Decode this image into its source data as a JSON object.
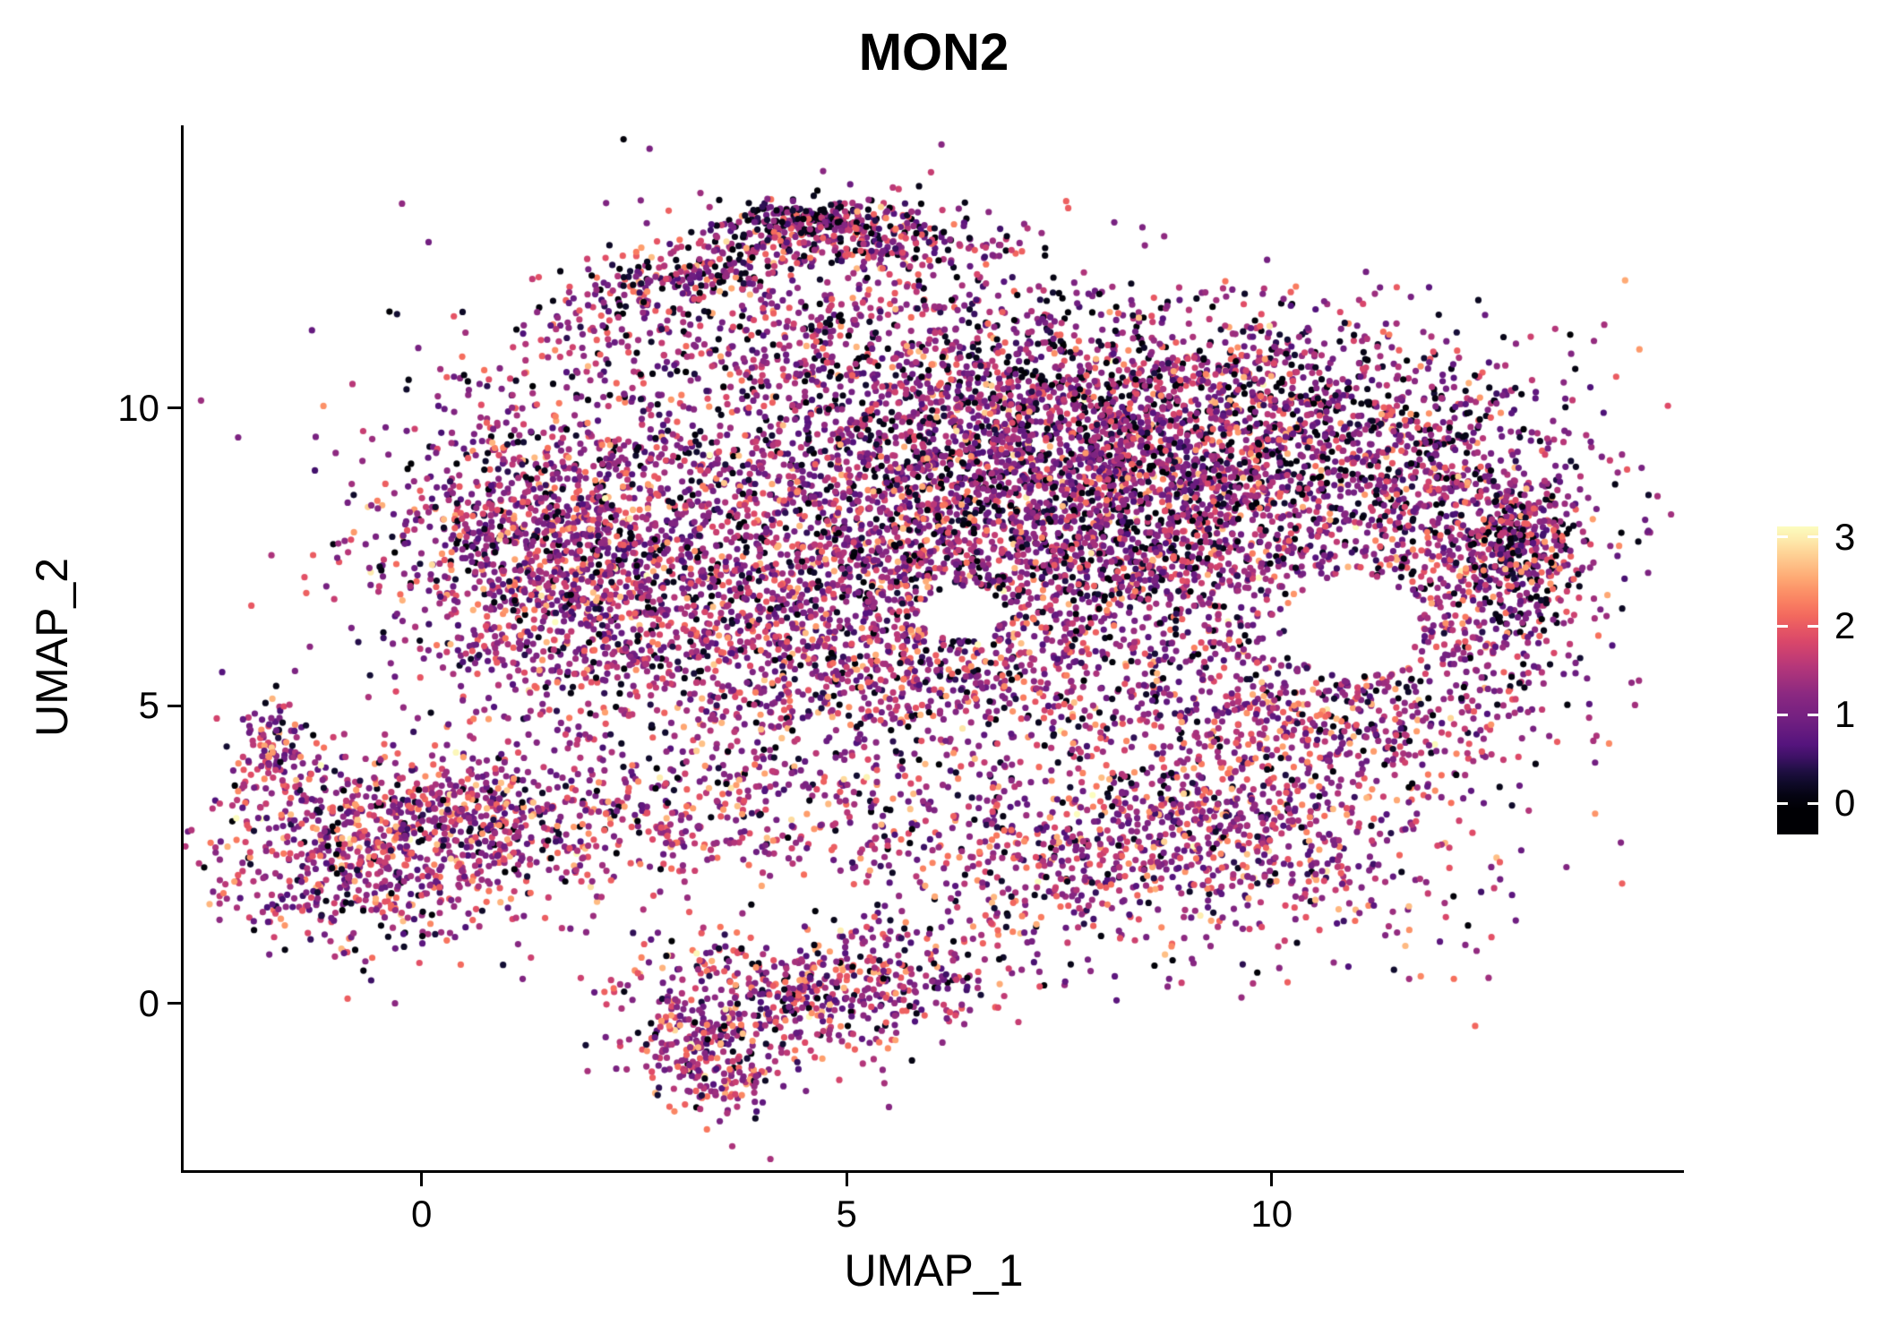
{
  "figure": {
    "background": "#FFFFFF"
  },
  "chart_data": {
    "type": "scatter",
    "title": "MON2",
    "xlabel": "UMAP_1",
    "ylabel": "UMAP_2",
    "xlim": [
      -2.8,
      14.85
    ],
    "ylim": [
      -2.8,
      14.75
    ],
    "xticks": [
      0,
      5,
      10
    ],
    "xtick_labels": [
      "0",
      "5",
      "10"
    ],
    "yticks": [
      0,
      5,
      10
    ],
    "ytick_labels": [
      "0",
      "5",
      "10"
    ],
    "grid": false,
    "legend_position": "right",
    "point_radius_px": 3.6,
    "seed": 42,
    "colorbar": {
      "tick_values": [
        0,
        1,
        2,
        3
      ],
      "tick_labels": [
        "0",
        "1",
        "2",
        "3"
      ],
      "bar_min": -0.35,
      "bar_max": 3.12,
      "cmap_max": 3.1,
      "colormap": "magma",
      "colors": [
        "#000004",
        "#140E36",
        "#51127C",
        "#711F81",
        "#8C2981",
        "#B73779",
        "#DE4968",
        "#F7705C",
        "#FE9F6D",
        "#FECF92",
        "#FCFDBF"
      ]
    },
    "voids": [
      {
        "cx": 10.95,
        "cy": 6.35,
        "rx": 0.8,
        "ry": 0.85
      },
      {
        "cx": 6.35,
        "cy": 6.55,
        "rx": 0.5,
        "ry": 0.45
      }
    ],
    "clusters": [
      {
        "name": "main-core-right",
        "cx": 7.8,
        "cy": 8.4,
        "sx": 1.9,
        "sy": 1.35,
        "rot": -8,
        "n": 3000,
        "p0": 0.2,
        "phot": 0.1
      },
      {
        "name": "main-left-lobe",
        "cx": 1.6,
        "cy": 7.6,
        "sx": 1.05,
        "sy": 1.3,
        "rot": 10,
        "n": 1500,
        "p0": 0.12,
        "phot": 0.13
      },
      {
        "name": "main-mid",
        "cx": 4.6,
        "cy": 7.3,
        "sx": 1.5,
        "sy": 1.5,
        "rot": 0,
        "n": 1300,
        "p0": 0.15,
        "phot": 0.12
      },
      {
        "name": "main-top-band",
        "cx": 7.0,
        "cy": 10.3,
        "sx": 2.2,
        "sy": 0.9,
        "rot": -5,
        "n": 900,
        "p0": 0.22,
        "phot": 0.08
      },
      {
        "name": "main-top-right",
        "cx": 10.6,
        "cy": 9.6,
        "sx": 1.5,
        "sy": 1.0,
        "rot": -15,
        "n": 900,
        "p0": 0.22,
        "phot": 0.08
      },
      {
        "name": "right-edge",
        "cx": 12.4,
        "cy": 7.3,
        "sx": 0.75,
        "sy": 1.6,
        "rot": 0,
        "n": 700,
        "p0": 0.15,
        "phot": 0.12
      },
      {
        "name": "right-edge-dense",
        "cx": 12.9,
        "cy": 7.7,
        "sx": 0.35,
        "sy": 0.5,
        "rot": 0,
        "n": 250,
        "p0": 0.25,
        "phot": 0.1
      },
      {
        "name": "main-bottom-fringe",
        "cx": 6.0,
        "cy": 5.6,
        "sx": 2.6,
        "sy": 0.7,
        "rot": -3,
        "n": 700,
        "p0": 0.15,
        "phot": 0.15
      },
      {
        "name": "top-arc-left",
        "cx": 3.2,
        "cy": 12.25,
        "sx": 1.0,
        "sy": 0.3,
        "rot": 25,
        "n": 300,
        "p0": 0.25,
        "phot": 0.08
      },
      {
        "name": "top-arc-right",
        "cx": 5.3,
        "cy": 12.85,
        "sx": 1.0,
        "sy": 0.3,
        "rot": -8,
        "n": 300,
        "p0": 0.25,
        "phot": 0.08
      },
      {
        "name": "top-arc-crest",
        "cx": 4.6,
        "cy": 13.15,
        "sx": 0.5,
        "sy": 0.18,
        "rot": 0,
        "n": 150,
        "p0": 0.35,
        "phot": 0.06
      },
      {
        "name": "below-arc-scatter",
        "cx": 4.4,
        "cy": 11.2,
        "sx": 1.6,
        "sy": 0.7,
        "rot": 0,
        "n": 250,
        "p0": 0.2,
        "phot": 0.08
      },
      {
        "name": "left-cluster",
        "cx": -0.55,
        "cy": 2.6,
        "sx": 1.0,
        "sy": 0.85,
        "rot": 0,
        "n": 850,
        "p0": 0.1,
        "phot": 0.2
      },
      {
        "name": "left-cluster-tail",
        "cx": -1.75,
        "cy": 4.35,
        "sx": 0.22,
        "sy": 0.35,
        "rot": 0,
        "n": 90,
        "p0": 0.12,
        "phot": 0.15
      },
      {
        "name": "left-cluster-ext",
        "cx": 0.8,
        "cy": 3.3,
        "sx": 0.6,
        "sy": 0.4,
        "rot": 0,
        "n": 200,
        "p0": 0.1,
        "phot": 0.18
      },
      {
        "name": "mid-band",
        "cx": 3.5,
        "cy": 2.9,
        "sx": 1.8,
        "sy": 0.5,
        "rot": 3,
        "n": 380,
        "p0": 0.1,
        "phot": 0.22
      },
      {
        "name": "upper-band",
        "cx": 4.0,
        "cy": 3.9,
        "sx": 1.6,
        "sy": 0.35,
        "rot": 0,
        "n": 150,
        "p0": 0.12,
        "phot": 0.15
      },
      {
        "name": "bottom-cluster",
        "cx": 4.3,
        "cy": 0.1,
        "sx": 1.05,
        "sy": 0.6,
        "rot": 5,
        "n": 520,
        "p0": 0.1,
        "phot": 0.2
      },
      {
        "name": "bottom-tail",
        "cx": 3.35,
        "cy": -0.9,
        "sx": 0.4,
        "sy": 0.55,
        "rot": 20,
        "n": 200,
        "p0": 0.12,
        "phot": 0.18
      },
      {
        "name": "bottom-ext",
        "cx": 5.9,
        "cy": 0.5,
        "sx": 0.8,
        "sy": 0.45,
        "rot": 10,
        "n": 130,
        "p0": 0.12,
        "phot": 0.18
      },
      {
        "name": "lower-right-lobe",
        "cx": 9.4,
        "cy": 3.1,
        "sx": 1.5,
        "sy": 1.1,
        "rot": -10,
        "n": 950,
        "p0": 0.1,
        "phot": 0.2
      },
      {
        "name": "lower-right-bridge",
        "cx": 7.6,
        "cy": 2.4,
        "sx": 1.1,
        "sy": 0.6,
        "rot": 10,
        "n": 300,
        "p0": 0.1,
        "phot": 0.2
      },
      {
        "name": "lobe-main-bridge",
        "cx": 10.8,
        "cy": 4.9,
        "sx": 0.8,
        "sy": 0.6,
        "rot": 0,
        "n": 250,
        "p0": 0.12,
        "phot": 0.15
      },
      {
        "name": "diffuse-haze",
        "cx": 6.5,
        "cy": 8.0,
        "sx": 3.5,
        "sy": 2.2,
        "rot": 0,
        "n": 500,
        "p0": 0.2,
        "phot": 0.1
      }
    ]
  }
}
